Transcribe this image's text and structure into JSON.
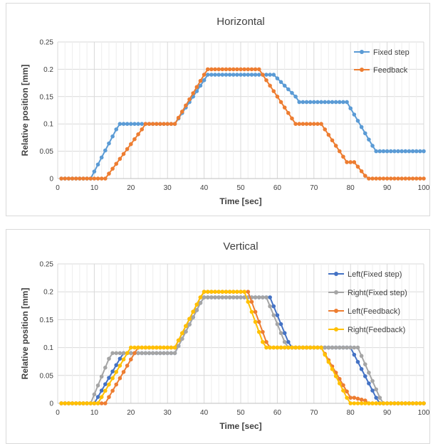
{
  "charts": [
    {
      "title": "Horizontal",
      "xlabel": "Time [sec]",
      "ylabel": "Relative position [mm]",
      "xlim": [
        0,
        100
      ],
      "ylim": [
        0,
        0.25
      ],
      "xticks": [
        0,
        10,
        20,
        30,
        40,
        50,
        60,
        70,
        80,
        90,
        100
      ],
      "yticks": [
        0,
        0.05,
        0.1,
        0.15,
        0.2,
        0.25
      ],
      "ytick_labels": [
        "0",
        "0.05",
        "0.1",
        "0.15",
        "0.2",
        "0.25"
      ],
      "grid": true,
      "legend_position": "top-right",
      "series": [
        {
          "name": "Fixed step",
          "color": "#5b9bd5",
          "keypoints": [
            [
              1,
              0
            ],
            [
              9,
              0
            ],
            [
              16,
              0.09
            ],
            [
              17,
              0.1
            ],
            [
              32,
              0.1
            ],
            [
              40,
              0.18
            ],
            [
              41,
              0.19
            ],
            [
              59,
              0.19
            ],
            [
              65,
              0.15
            ],
            [
              66,
              0.14
            ],
            [
              79,
              0.14
            ],
            [
              86,
              0.06
            ],
            [
              87,
              0.05
            ],
            [
              100,
              0.05
            ]
          ]
        },
        {
          "name": "Feedback",
          "color": "#ed7d31",
          "keypoints": [
            [
              1,
              0
            ],
            [
              13,
              0
            ],
            [
              23,
              0.09
            ],
            [
              24,
              0.1
            ],
            [
              32,
              0.1
            ],
            [
              40,
              0.19
            ],
            [
              41,
              0.2
            ],
            [
              55,
              0.2
            ],
            [
              64,
              0.11
            ],
            [
              65,
              0.1
            ],
            [
              72,
              0.1
            ],
            [
              78,
              0.04
            ],
            [
              79,
              0.03
            ],
            [
              81,
              0.03
            ],
            [
              84,
              0.005
            ],
            [
              85,
              0
            ],
            [
              100,
              0
            ]
          ]
        }
      ]
    },
    {
      "title": "Vertical",
      "xlabel": "Time [sec]",
      "ylabel": "Relative position [mm]",
      "xlim": [
        0,
        100
      ],
      "ylim": [
        0,
        0.25
      ],
      "xticks": [
        0,
        10,
        20,
        30,
        40,
        50,
        60,
        70,
        80,
        90,
        100
      ],
      "yticks": [
        0,
        0.05,
        0.1,
        0.15,
        0.2,
        0.25
      ],
      "ytick_labels": [
        "0",
        "0.05",
        "0.1",
        "0.15",
        "0.2",
        "0.25"
      ],
      "grid": true,
      "legend_position": "top-right",
      "series": [
        {
          "name": "Left(Fixed step)",
          "color": "#4472c4",
          "keypoints": [
            [
              1,
              0
            ],
            [
              10,
              0
            ],
            [
              17,
              0.08
            ],
            [
              18,
              0.09
            ],
            [
              32,
              0.09
            ],
            [
              39,
              0.18
            ],
            [
              40,
              0.19
            ],
            [
              58,
              0.19
            ],
            [
              63,
              0.11
            ],
            [
              64,
              0.1
            ],
            [
              80,
              0.1
            ],
            [
              87,
              0.01
            ],
            [
              88,
              0
            ],
            [
              100,
              0
            ]
          ]
        },
        {
          "name": "Right(Fixed step)",
          "color": "#a5a5a5",
          "keypoints": [
            [
              1,
              0
            ],
            [
              9,
              0
            ],
            [
              14,
              0.08
            ],
            [
              15,
              0.09
            ],
            [
              32,
              0.09
            ],
            [
              39,
              0.18
            ],
            [
              40,
              0.19
            ],
            [
              57,
              0.19
            ],
            [
              62,
              0.11
            ],
            [
              63,
              0.1
            ],
            [
              82,
              0.1
            ],
            [
              88,
              0.01
            ],
            [
              89,
              0
            ],
            [
              100,
              0
            ]
          ]
        },
        {
          "name": "Left(Feedback)",
          "color": "#ed7d31",
          "keypoints": [
            [
              1,
              0
            ],
            [
              13,
              0
            ],
            [
              21,
              0.09
            ],
            [
              22,
              0.1
            ],
            [
              32,
              0.1
            ],
            [
              39,
              0.19
            ],
            [
              40,
              0.2
            ],
            [
              52,
              0.2
            ],
            [
              57,
              0.11
            ],
            [
              58,
              0.1
            ],
            [
              72,
              0.1
            ],
            [
              80,
              0.01
            ],
            [
              81,
              0.01
            ],
            [
              84,
              0.005
            ],
            [
              85,
              0
            ],
            [
              100,
              0
            ]
          ]
        },
        {
          "name": "Right(Feedback)",
          "color": "#ffc000",
          "keypoints": [
            [
              1,
              0
            ],
            [
              11,
              0
            ],
            [
              19,
              0.09
            ],
            [
              20,
              0.1
            ],
            [
              32,
              0.1
            ],
            [
              39,
              0.19
            ],
            [
              40,
              0.2
            ],
            [
              51,
              0.2
            ],
            [
              56,
              0.11
            ],
            [
              57,
              0.1
            ],
            [
              72,
              0.1
            ],
            [
              79,
              0.01
            ],
            [
              80,
              0
            ],
            [
              100,
              0
            ]
          ]
        }
      ]
    }
  ],
  "chart_data": [
    {
      "type": "line",
      "title": "Horizontal",
      "xlabel": "Time [sec]",
      "ylabel": "Relative position [mm]",
      "xlim": [
        0,
        100
      ],
      "ylim": [
        0,
        0.25
      ],
      "series_names": [
        "Fixed step",
        "Feedback"
      ]
    },
    {
      "type": "line",
      "title": "Vertical",
      "xlabel": "Time [sec]",
      "ylabel": "Relative position [mm]",
      "xlim": [
        0,
        100
      ],
      "ylim": [
        0,
        0.25
      ],
      "series_names": [
        "Left(Fixed step)",
        "Right(Fixed step)",
        "Left(Feedback)",
        "Right(Feedback)"
      ]
    }
  ]
}
